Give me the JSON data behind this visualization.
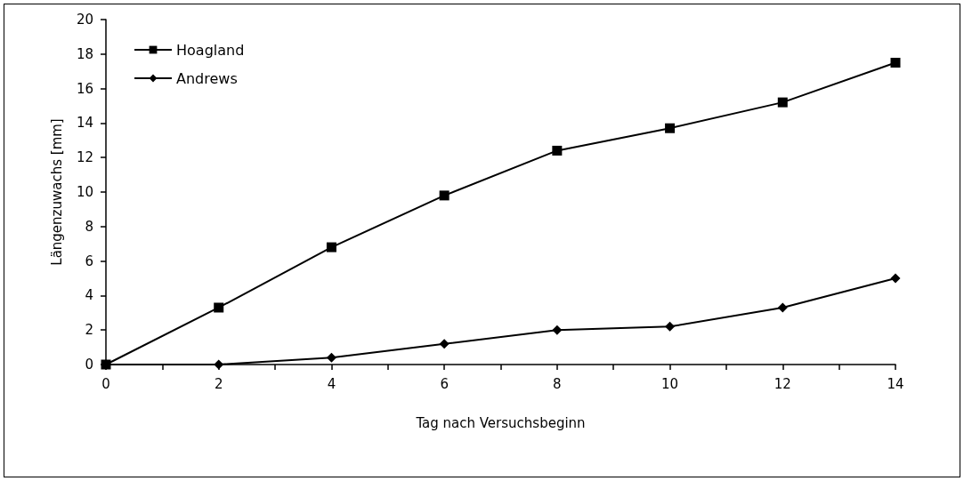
{
  "chart_data": {
    "type": "line",
    "xlabel": "Tag nach Versuchsbeginn",
    "ylabel": "Längenzuwachs [mm]",
    "x": [
      0,
      2,
      4,
      6,
      8,
      10,
      12,
      14
    ],
    "series": [
      {
        "name": "Hoagland",
        "color": "#000000",
        "marker": "square",
        "values": [
          0,
          3.3,
          6.8,
          9.8,
          12.4,
          13.7,
          15.2,
          17.5
        ]
      },
      {
        "name": "Andrews",
        "color": "#000000",
        "marker": "diamond",
        "values": [
          0,
          0,
          0.4,
          1.2,
          2.0,
          2.2,
          3.3,
          5.0
        ]
      }
    ],
    "xlim": [
      0,
      14
    ],
    "xticks": [
      0,
      {
        "value": 1,
        "label": null
      },
      2,
      {
        "value": 3,
        "label": null
      },
      4,
      {
        "value": 5,
        "label": null
      },
      6,
      {
        "value": 7,
        "label": null
      },
      8,
      {
        "value": 9,
        "label": null
      },
      10,
      {
        "value": 11,
        "label": null
      },
      12,
      {
        "value": 13,
        "label": null
      },
      14
    ],
    "ylim": [
      0,
      20
    ],
    "yticks": [
      0,
      2,
      4,
      6,
      8,
      10,
      12,
      14,
      16,
      18,
      20
    ],
    "grid": false,
    "legend": "top left",
    "line_style": "solid"
  }
}
